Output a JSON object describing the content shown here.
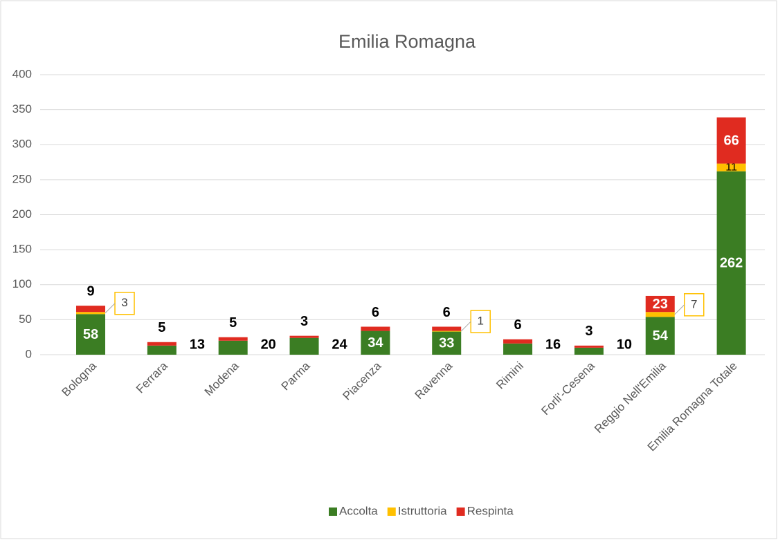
{
  "chart_data": {
    "type": "stacked_bar",
    "title": "Emilia Romagna",
    "categories": [
      "Bologna",
      "Ferrara",
      "Modena",
      "Parma",
      "Piacenza",
      "Ravenna",
      "Rimini",
      "Forli'-Cesena",
      "Reggio Nell'Emilia",
      "Emilia Romagna Totale"
    ],
    "series": [
      {
        "name": "Accolta",
        "color": "#3b7d23",
        "values": [
          58,
          13,
          20,
          24,
          34,
          33,
          16,
          10,
          54,
          262
        ]
      },
      {
        "name": "Istruttoria",
        "color": "#ffc000",
        "values": [
          3,
          null,
          null,
          null,
          null,
          1,
          null,
          null,
          7,
          11
        ]
      },
      {
        "name": "Respinta",
        "color": "#e02b20",
        "values": [
          9,
          5,
          5,
          3,
          6,
          6,
          6,
          3,
          23,
          66
        ]
      }
    ],
    "ylim": [
      0,
      400
    ],
    "yticks": [
      0,
      50,
      100,
      150,
      200,
      250,
      300,
      350,
      400
    ],
    "grid": true,
    "legend": "bottom"
  }
}
